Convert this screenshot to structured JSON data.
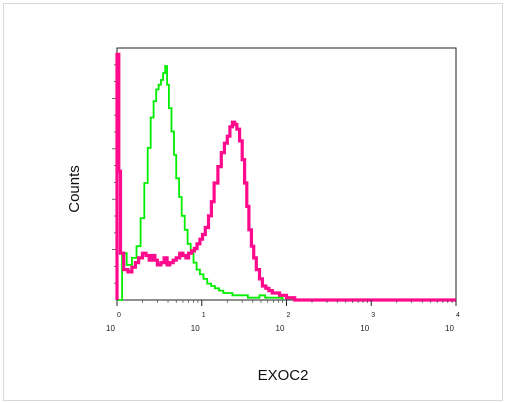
{
  "chart_data": {
    "type": "line",
    "xlabel": "EXOC2",
    "ylabel": "Counts",
    "x_scale": "log",
    "xlim": [
      1,
      10000
    ],
    "ylim": [
      0,
      1
    ],
    "grid": false,
    "x_ticks": [
      {
        "base": "10",
        "exp": "0"
      },
      {
        "base": "10",
        "exp": "1"
      },
      {
        "base": "10",
        "exp": "2"
      },
      {
        "base": "10",
        "exp": "3"
      },
      {
        "base": "10",
        "exp": "4"
      }
    ],
    "series": [
      {
        "color": "#00ee00",
        "x": [
          1.0,
          1.15,
          1.3,
          1.5,
          1.7,
          1.9,
          2.1,
          2.3,
          2.5,
          2.7,
          2.9,
          3.1,
          3.3,
          3.5,
          3.7,
          3.9,
          4.1,
          4.4,
          4.7,
          5.0,
          5.4,
          5.8,
          6.3,
          6.8,
          7.4,
          8.0,
          8.7,
          9.5,
          10.5,
          11.6,
          12.9,
          14.3,
          16.0,
          18.0,
          20.0,
          23.0,
          26.0,
          30.0,
          35.0,
          41.0,
          48.0,
          56.0,
          65.0,
          75.0,
          90.0
        ],
        "y": [
          0.0,
          0.2,
          0.15,
          0.18,
          0.23,
          0.35,
          0.5,
          0.65,
          0.78,
          0.85,
          0.9,
          0.92,
          0.94,
          0.97,
          1.0,
          0.92,
          0.82,
          0.72,
          0.62,
          0.52,
          0.44,
          0.36,
          0.3,
          0.24,
          0.2,
          0.16,
          0.13,
          0.11,
          0.09,
          0.07,
          0.06,
          0.05,
          0.04,
          0.03,
          0.03,
          0.02,
          0.02,
          0.02,
          0.01,
          0.01,
          0.02,
          0.01,
          0.01,
          0.01,
          0.0
        ]
      },
      {
        "color": "#ff0a8c",
        "x": [
          1.0,
          1.05,
          1.1,
          1.2,
          1.35,
          1.5,
          1.65,
          1.8,
          2.0,
          2.2,
          2.4,
          2.6,
          2.8,
          3.0,
          3.3,
          3.6,
          3.9,
          4.2,
          4.6,
          5.0,
          5.5,
          6.0,
          6.5,
          7.0,
          7.6,
          8.2,
          8.8,
          9.5,
          10.2,
          11.0,
          12.0,
          13.0,
          14.0,
          15.5,
          17.0,
          18.5,
          20.0,
          21.5,
          23.0,
          24.5,
          26.0,
          28.0,
          30.0,
          32.0,
          34.0,
          36.0,
          38.5,
          41.0,
          44.0,
          48.0,
          52.0,
          57.0,
          62.0,
          68.0,
          75.0,
          83.0,
          92.0,
          100.0,
          110.0,
          125.0,
          150.0,
          200.0,
          400.0,
          1000.0,
          10000.0
        ],
        "y": [
          1.05,
          0.55,
          0.2,
          0.13,
          0.12,
          0.14,
          0.16,
          0.18,
          0.2,
          0.19,
          0.17,
          0.19,
          0.17,
          0.15,
          0.16,
          0.18,
          0.15,
          0.16,
          0.17,
          0.18,
          0.2,
          0.19,
          0.18,
          0.2,
          0.21,
          0.22,
          0.24,
          0.26,
          0.28,
          0.31,
          0.36,
          0.42,
          0.5,
          0.57,
          0.63,
          0.67,
          0.7,
          0.74,
          0.76,
          0.75,
          0.73,
          0.68,
          0.6,
          0.5,
          0.4,
          0.3,
          0.23,
          0.18,
          0.13,
          0.09,
          0.06,
          0.05,
          0.04,
          0.03,
          0.03,
          0.02,
          0.02,
          0.01,
          0.01,
          0.0,
          0.0,
          0.0,
          0.0,
          0.0,
          0.0
        ]
      }
    ]
  }
}
